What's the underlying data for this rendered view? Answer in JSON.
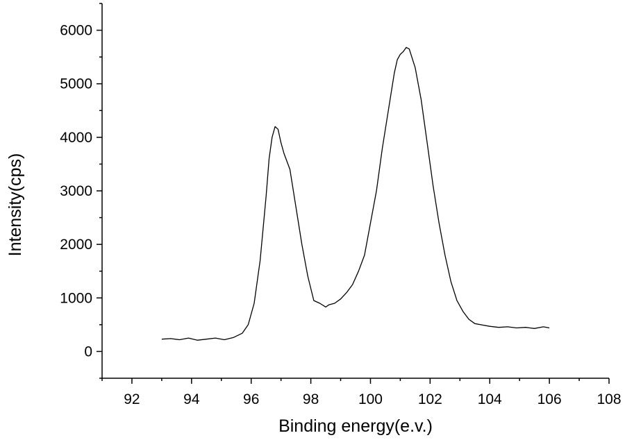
{
  "chart_data": {
    "type": "line",
    "title": "",
    "xlabel": "Binding energy(e.v.)",
    "ylabel": "Intensity(cps)",
    "xlim": [
      91,
      108
    ],
    "ylim": [
      -500,
      6500
    ],
    "x_ticks": [
      92,
      94,
      96,
      98,
      100,
      102,
      104,
      106,
      108
    ],
    "y_ticks": [
      0,
      1000,
      2000,
      3000,
      4000,
      5000,
      6000
    ],
    "x_tick_labels": [
      "92",
      "94",
      "96",
      "98",
      "100",
      "102",
      "104",
      "106",
      "108"
    ],
    "y_tick_labels": [
      "0",
      "1000",
      "2000",
      "3000",
      "4000",
      "5000",
      "6000"
    ],
    "grid": false,
    "legend": "none",
    "line_color": "#000000",
    "series": [
      {
        "x": [
          93.0,
          93.3,
          93.6,
          93.9,
          94.2,
          94.5,
          94.8,
          95.1,
          95.4,
          95.7,
          95.9,
          96.1,
          96.3,
          96.5,
          96.6,
          96.7,
          96.8,
          96.9,
          97.0,
          97.1,
          97.3,
          97.5,
          97.7,
          97.9,
          98.1,
          98.3,
          98.5,
          98.6,
          98.8,
          99.0,
          99.2,
          99.4,
          99.6,
          99.8,
          100.0,
          100.2,
          100.4,
          100.6,
          100.8,
          100.9,
          101.0,
          101.1,
          101.2,
          101.3,
          101.5,
          101.7,
          101.9,
          102.1,
          102.3,
          102.5,
          102.7,
          102.9,
          103.1,
          103.3,
          103.5,
          103.7,
          104.0,
          104.3,
          104.6,
          104.9,
          105.2,
          105.5,
          105.8,
          106.0
        ],
        "y": [
          230,
          240,
          220,
          250,
          210,
          230,
          250,
          220,
          260,
          340,
          500,
          900,
          1700,
          2900,
          3600,
          4000,
          4200,
          4150,
          3900,
          3700,
          3400,
          2700,
          2000,
          1400,
          950,
          900,
          830,
          870,
          900,
          980,
          1100,
          1250,
          1500,
          1800,
          2400,
          3000,
          3800,
          4500,
          5200,
          5450,
          5550,
          5600,
          5680,
          5650,
          5300,
          4700,
          3900,
          3100,
          2400,
          1800,
          1300,
          950,
          750,
          600,
          520,
          500,
          470,
          450,
          460,
          440,
          450,
          430,
          460,
          440
        ]
      }
    ]
  }
}
